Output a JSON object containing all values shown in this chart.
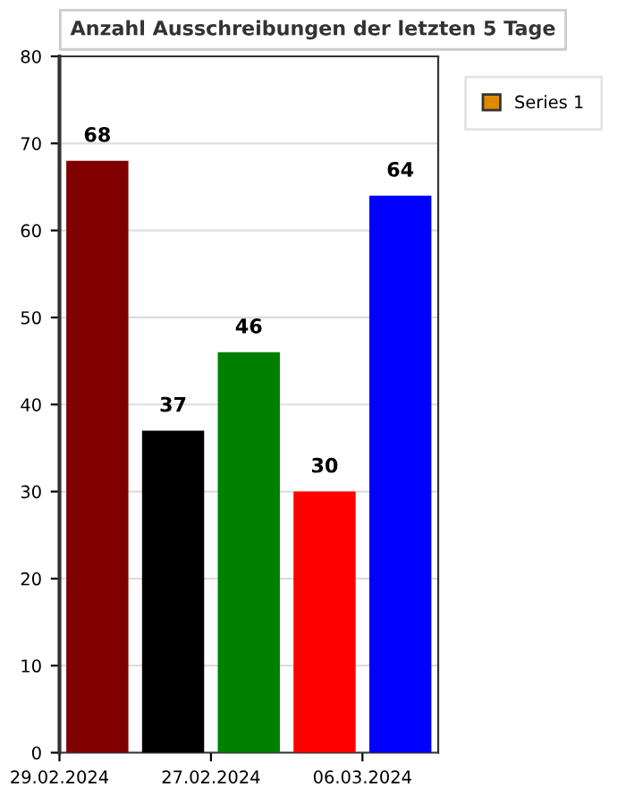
{
  "chart_data": {
    "type": "bar",
    "title": "Anzahl Ausschreibungen der letzten 5 Tage",
    "categories": [
      "29.02.2024",
      null,
      "27.02.2024",
      null,
      "06.03.2024"
    ],
    "series": [
      {
        "name": "Series 1",
        "color": "#e08a00",
        "colors": [
          "#800000",
          "#000000",
          "#008000",
          "#ff0000",
          "#0000ff"
        ],
        "values": [
          68,
          37,
          46,
          30,
          64
        ]
      }
    ],
    "ylim": [
      0,
      80
    ],
    "yticks": [
      0,
      10,
      20,
      30,
      40,
      50,
      60,
      70,
      80
    ],
    "grid": "y",
    "legend": "top right",
    "data_labels": true
  }
}
